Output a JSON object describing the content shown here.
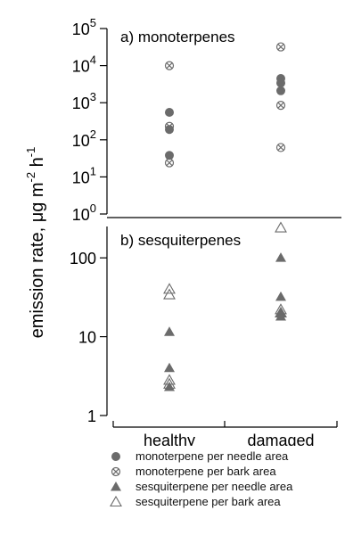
{
  "chart_data": [
    {
      "type": "scatter",
      "panel_label": "a) monoterpenes",
      "ylabel": "emission rate, μg m-2 h-1",
      "ylog": true,
      "ylim": [
        1,
        100000
      ],
      "yticks": [
        {
          "value": 1,
          "base": "10",
          "exp": "0"
        },
        {
          "value": 10,
          "base": "10",
          "exp": "1"
        },
        {
          "value": 100,
          "base": "10",
          "exp": "2"
        },
        {
          "value": 1000,
          "base": "10",
          "exp": "3"
        },
        {
          "value": 10000,
          "base": "10",
          "exp": "4"
        },
        {
          "value": 100000,
          "base": "10",
          "exp": "5"
        }
      ],
      "categories": [
        "healthy",
        "damaged"
      ],
      "series": [
        {
          "name": "monoterpene per needle area",
          "marker": "filled-circle",
          "points": [
            {
              "x": "healthy",
              "y": 550
            },
            {
              "x": "healthy",
              "y": 190
            },
            {
              "x": "healthy",
              "y": 38
            },
            {
              "x": "damaged",
              "y": 4500
            },
            {
              "x": "damaged",
              "y": 3400
            },
            {
              "x": "damaged",
              "y": 2100
            }
          ]
        },
        {
          "name": "monoterpene per bark area",
          "marker": "crossed-circle",
          "points": [
            {
              "x": "healthy",
              "y": 10000
            },
            {
              "x": "healthy",
              "y": 230
            },
            {
              "x": "healthy",
              "y": 24
            },
            {
              "x": "damaged",
              "y": 32000
            },
            {
              "x": "damaged",
              "y": 850
            },
            {
              "x": "damaged",
              "y": 62
            }
          ]
        }
      ]
    },
    {
      "type": "scatter",
      "panel_label": "b) sesquiterpenes",
      "ylog": true,
      "ylim": [
        1,
        250
      ],
      "yticks": [
        {
          "value": 1,
          "label": "1"
        },
        {
          "value": 10,
          "label": "10"
        },
        {
          "value": 100,
          "label": "100"
        }
      ],
      "categories": [
        "healthy",
        "damaged"
      ],
      "series": [
        {
          "name": "sesquiterpene per needle area",
          "marker": "filled-triangle",
          "points": [
            {
              "x": "healthy",
              "y": 11.5
            },
            {
              "x": "healthy",
              "y": 4
            },
            {
              "x": "healthy",
              "y": 2.3
            },
            {
              "x": "damaged",
              "y": 100
            },
            {
              "x": "damaged",
              "y": 32
            },
            {
              "x": "damaged",
              "y": 20
            },
            {
              "x": "damaged",
              "y": 18
            }
          ]
        },
        {
          "name": "sesquiterpene per bark area",
          "marker": "open-triangle",
          "points": [
            {
              "x": "healthy",
              "y": 40
            },
            {
              "x": "healthy",
              "y": 34
            },
            {
              "x": "healthy",
              "y": 2.8
            },
            {
              "x": "healthy",
              "y": 2.5
            },
            {
              "x": "damaged",
              "y": 240
            },
            {
              "x": "damaged",
              "y": 22
            },
            {
              "x": "damaged",
              "y": 20
            }
          ]
        }
      ]
    }
  ],
  "ylabel_text": "emission rate, μg m",
  "ylabel_sup1": "-2",
  "ylabel_mid": " h",
  "ylabel_sup2": "-1",
  "legend": [
    {
      "label": "monoterpene per needle area",
      "marker": "filled-circle"
    },
    {
      "label": "monoterpene per bark area",
      "marker": "crossed-circle"
    },
    {
      "label": "sesquiterpene per needle area",
      "marker": "filled-triangle"
    },
    {
      "label": "sesquiterpene per bark area",
      "marker": "open-triangle"
    }
  ],
  "colors": {
    "marker": "#6b6b6b",
    "axis": "#000000"
  }
}
